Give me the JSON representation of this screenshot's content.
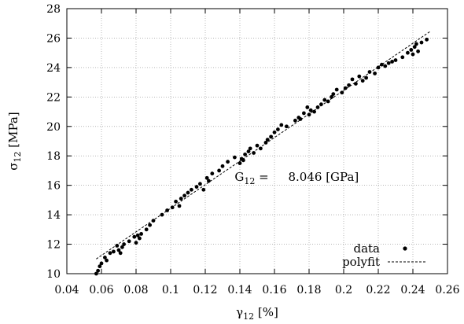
{
  "chart_data": {
    "type": "scatter",
    "xlabel": {
      "main": "γ",
      "sub": "12",
      "unit": " [%]"
    },
    "ylabel": {
      "main": "σ",
      "sub": "12",
      "unit": " [MPa]"
    },
    "xlim": [
      0.04,
      0.26
    ],
    "ylim": [
      10,
      28
    ],
    "xticks": [
      0.04,
      0.06,
      0.08,
      0.1,
      0.12,
      0.14,
      0.16,
      0.18,
      0.2,
      0.22,
      0.24,
      0.26
    ],
    "xtick_labels": [
      "0.04",
      "0.06",
      "0.08",
      "0.1",
      "0.12",
      "0.14",
      "0.16",
      "0.18",
      "0.2",
      "0.22",
      "0.24",
      "0.26"
    ],
    "yticks": [
      10,
      12,
      14,
      16,
      18,
      20,
      22,
      24,
      26,
      28
    ],
    "ytick_labels": [
      "10",
      "12",
      "14",
      "16",
      "18",
      "20",
      "22",
      "24",
      "26",
      "28"
    ],
    "grid": true,
    "legend_position": "bottom-right",
    "annotation": {
      "main": "G",
      "sub": "12",
      "eq": " = ",
      "value": "8.046 [GPa]",
      "at": [
        0.137,
        16.3
      ]
    },
    "series": [
      {
        "name": "data",
        "style": "points",
        "x": [
          0.057,
          0.058,
          0.059,
          0.06,
          0.062,
          0.063,
          0.065,
          0.067,
          0.069,
          0.07,
          0.071,
          0.072,
          0.073,
          0.076,
          0.079,
          0.08,
          0.081,
          0.082,
          0.083,
          0.086,
          0.088,
          0.09,
          0.095,
          0.098,
          0.101,
          0.103,
          0.105,
          0.106,
          0.108,
          0.11,
          0.112,
          0.115,
          0.117,
          0.119,
          0.121,
          0.122,
          0.124,
          0.128,
          0.13,
          0.133,
          0.137,
          0.14,
          0.141,
          0.142,
          0.143,
          0.145,
          0.146,
          0.148,
          0.15,
          0.152,
          0.155,
          0.156,
          0.158,
          0.16,
          0.162,
          0.164,
          0.167,
          0.172,
          0.174,
          0.175,
          0.177,
          0.179,
          0.18,
          0.181,
          0.183,
          0.185,
          0.187,
          0.189,
          0.191,
          0.193,
          0.194,
          0.196,
          0.199,
          0.201,
          0.203,
          0.205,
          0.207,
          0.209,
          0.211,
          0.213,
          0.215,
          0.218,
          0.22,
          0.222,
          0.224,
          0.226,
          0.228,
          0.23,
          0.234,
          0.237,
          0.239,
          0.24,
          0.241,
          0.242,
          0.243,
          0.245,
          0.248
        ],
        "y": [
          10.0,
          10.2,
          10.5,
          10.7,
          11.1,
          10.9,
          11.4,
          11.5,
          11.9,
          11.6,
          11.4,
          11.8,
          12.0,
          12.2,
          12.5,
          12.1,
          12.6,
          12.4,
          12.7,
          13.0,
          13.3,
          13.6,
          14.0,
          14.3,
          14.5,
          14.9,
          14.6,
          15.1,
          15.3,
          15.5,
          15.7,
          15.9,
          16.1,
          15.7,
          16.5,
          16.3,
          16.8,
          17.0,
          17.3,
          17.6,
          17.9,
          17.5,
          17.8,
          17.7,
          18.1,
          18.3,
          18.5,
          18.2,
          18.7,
          18.5,
          18.9,
          19.1,
          19.3,
          19.6,
          19.8,
          20.1,
          20.0,
          20.4,
          20.6,
          20.5,
          20.9,
          21.3,
          20.8,
          21.1,
          21.0,
          21.3,
          21.5,
          21.8,
          21.7,
          22.0,
          22.2,
          22.5,
          22.3,
          22.6,
          22.8,
          23.2,
          22.9,
          23.4,
          23.1,
          23.3,
          23.7,
          23.6,
          24.0,
          24.2,
          24.1,
          24.3,
          24.4,
          24.5,
          24.7,
          25.0,
          25.2,
          24.9,
          25.4,
          25.6,
          25.1,
          25.7,
          25.9
        ]
      },
      {
        "name": "polyfit",
        "style": "dashed-line",
        "x": [
          0.057,
          0.25
        ],
        "y": [
          11.0,
          26.45
        ]
      }
    ]
  }
}
